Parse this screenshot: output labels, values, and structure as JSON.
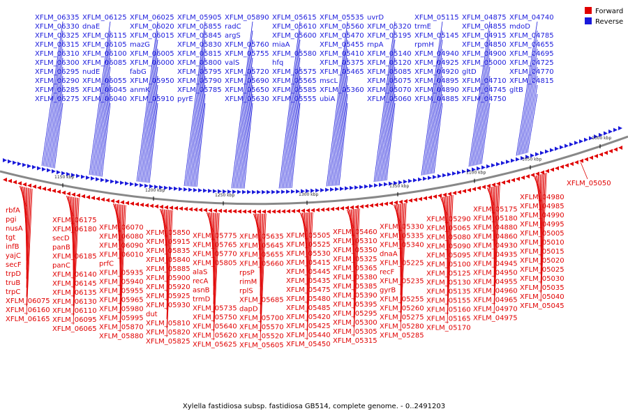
{
  "caption": "Xylella fastidiosa subsp. fastidiosa GB514, complete genome. - 0..2491203",
  "legend": [
    {
      "label": "Forward",
      "color": "#e00000"
    },
    {
      "label": "Reverse",
      "color": "#1a1adb"
    }
  ],
  "colors": {
    "forward": "#e00000",
    "reverse": "#1a1adb",
    "backbone": "#888888"
  },
  "ticks": [
    "1150 kbp",
    "1200 kbp",
    "1250 kbp",
    "1300 kbp",
    "1350 kbp",
    "1100 kbp",
    "1050 kbp",
    "1000 kbp"
  ],
  "reverse_labels": [
    "XFLM_06335",
    "XFLM_06330",
    "XFLM_06325",
    "XFLM_06315",
    "XFLM_06310",
    "XFLM_06300",
    "XFLM_06295",
    "XFLM_06290",
    "XFLM_06285",
    "XFLM_06275",
    "XFLM_06125",
    "dnaE",
    "XFLM_06115",
    "XFLM_06105",
    "XFLM_06100",
    "XFLM_06085",
    "nudE",
    "XFLM_06055",
    "XFLM_06045",
    "XFLM_06040",
    "XFLM_06025",
    "XFLM_06020",
    "XFLM_06015",
    "mazG",
    "XFLM_06005",
    "XFLM_06000",
    "fabG",
    "XFLM_05950",
    "anmK",
    "XFLM_05910",
    "XFLM_05905",
    "XFLM_05855",
    "XFLM_05845",
    "XFLM_05830",
    "XFLM_05815",
    "XFLM_05800",
    "XFLM_05795",
    "XFLM_05790",
    "XFLM_05785",
    "pyrE",
    "XFLM_05890",
    "radC",
    "argS",
    "XFLM_05760",
    "XFLM_05755",
    "valS",
    "XFLM_05720",
    "XFLM_05690",
    "XFLM_05650",
    "XFLM_05630",
    "XFLM_05615",
    "XFLM_05610",
    "XFLM_05600",
    "miaA",
    "XFLM_05580",
    "hfq",
    "XFLM_05575",
    "XFLM_05565",
    "XFLM_05585",
    "XFLM_05555",
    "XFLM_05535",
    "XFLM_05560",
    "XFLM_05470",
    "XFLM_05455",
    "XFLM_05410",
    "XFLM_05375",
    "XFLM_05465",
    "mscL",
    "XFLM_05360",
    "ubiA",
    "uvrD",
    "XFLM_05320",
    "XFLM_05195",
    "rnpA",
    "XFLM_05140",
    "XFLM_05120",
    "XFLM_05085",
    "XFLM_05075",
    "XFLM_05070",
    "XFLM_05060",
    "XFLM_05115",
    "trmE",
    "XFLM_05145",
    "rpmH",
    "XFLM_04940",
    "XFLM_04925",
    "XFLM_04920",
    "XFLM_04895",
    "XFLM_04890",
    "XFLM_04885",
    "XFLM_04875",
    "XFLM_04855",
    "XFLM_04915",
    "XFLM_04850",
    "XFLM_04900",
    "XFLM_05000",
    "gltD",
    "XFLM_04710",
    "XFLM_04745",
    "XFLM_04750",
    "XFLM_04740",
    "mdoD",
    "XFLM_04785",
    "XFLM_04655",
    "XFLM_04695",
    "XFLM_04725",
    "XFLM_04770",
    "XFLM_04815",
    "gltB"
  ],
  "forward_labels": [
    "rbfA",
    "pgi",
    "nusA",
    "tgt",
    "infB",
    "yajC",
    "secF",
    "trpD",
    "truB",
    "trpC",
    "XFLM_06075",
    "XFLM_06160",
    "XFLM_06165",
    "XFLM_06175",
    "XFLM_06180",
    "secD",
    "panB",
    "XFLM_06185",
    "panC",
    "XFLM_06140",
    "XFLM_06145",
    "XFLM_06135",
    "XFLM_06130",
    "XFLM_06110",
    "XFLM_06095",
    "XFLM_06065",
    "XFLM_06070",
    "XFLM_06080",
    "XFLM_06090",
    "XFLM_06010",
    "prfC",
    "XFLM_05935",
    "XFLM_05940",
    "XFLM_05955",
    "XFLM_05965",
    "XFLM_05980",
    "XFLM_05995",
    "XFLM_05870",
    "XFLM_05880",
    "XFLM_05850",
    "XFLM_05915",
    "XFLM_05835",
    "XFLM_05840",
    "XFLM_05885",
    "XFLM_05900",
    "XFLM_05920",
    "XFLM_05925",
    "XFLM_05930",
    "dut",
    "XFLM_05810",
    "XFLM_05820",
    "XFLM_05825",
    "XFLM_05775",
    "XFLM_05765",
    "XFLM_05770",
    "XFLM_05805",
    "alaS",
    "recA",
    "asnB",
    "trmD",
    "XFLM_05735",
    "XFLM_05750",
    "XFLM_05640",
    "XFLM_05620",
    "XFLM_05625",
    "XFLM_05635",
    "XFLM_05645",
    "XFLM_05655",
    "XFLM_05660",
    "rpsP",
    "rimM",
    "rplS",
    "XFLM_05685",
    "dapD",
    "XFLM_05700",
    "XFLM_05570",
    "XFLM_05520",
    "XFLM_05605",
    "XFLM_05505",
    "XFLM_05525",
    "XFLM_05530",
    "XFLM_05415",
    "XFLM_05445",
    "XFLM_05435",
    "XFLM_05475",
    "XFLM_05480",
    "XFLM_05485",
    "XFLM_05420",
    "XFLM_05425",
    "XFLM_05440",
    "XFLM_05450",
    "XFLM_05460",
    "XFLM_05310",
    "XFLM_05350",
    "XFLM_05325",
    "XFLM_05365",
    "XFLM_05380",
    "XFLM_05385",
    "XFLM_05390",
    "XFLM_05395",
    "XFLM_05295",
    "XFLM_05300",
    "XFLM_05305",
    "XFLM_05315",
    "XFLM_05330",
    "XFLM_05335",
    "XFLM_05340",
    "dnaA",
    "XFLM_05225",
    "recF",
    "XFLM_05235",
    "gyrB",
    "XFLM_05255",
    "XFLM_05260",
    "XFLM_05275",
    "XFLM_05280",
    "XFLM_05285",
    "XFLM_05290",
    "XFLM_05065",
    "XFLM_05080",
    "XFLM_05090",
    "XFLM_05095",
    "XFLM_05100",
    "XFLM_05125",
    "XFLM_05130",
    "XFLM_05135",
    "XFLM_05155",
    "XFLM_05160",
    "XFLM_05165",
    "XFLM_05170",
    "XFLM_05175",
    "XFLM_05180",
    "XFLM_04880",
    "XFLM_04860",
    "XFLM_04930",
    "XFLM_04935",
    "XFLM_04945",
    "XFLM_04950",
    "XFLM_04955",
    "XFLM_04960",
    "XFLM_04965",
    "XFLM_04970",
    "XFLM_04975",
    "XFLM_04980",
    "XFLM_04985",
    "XFLM_04990",
    "XFLM_04995",
    "XFLM_05005",
    "XFLM_05010",
    "XFLM_05015",
    "XFLM_05020",
    "XFLM_05025",
    "XFLM_05030",
    "XFLM_05035",
    "XFLM_05040",
    "XFLM_05045",
    "XFLM_05050"
  ]
}
